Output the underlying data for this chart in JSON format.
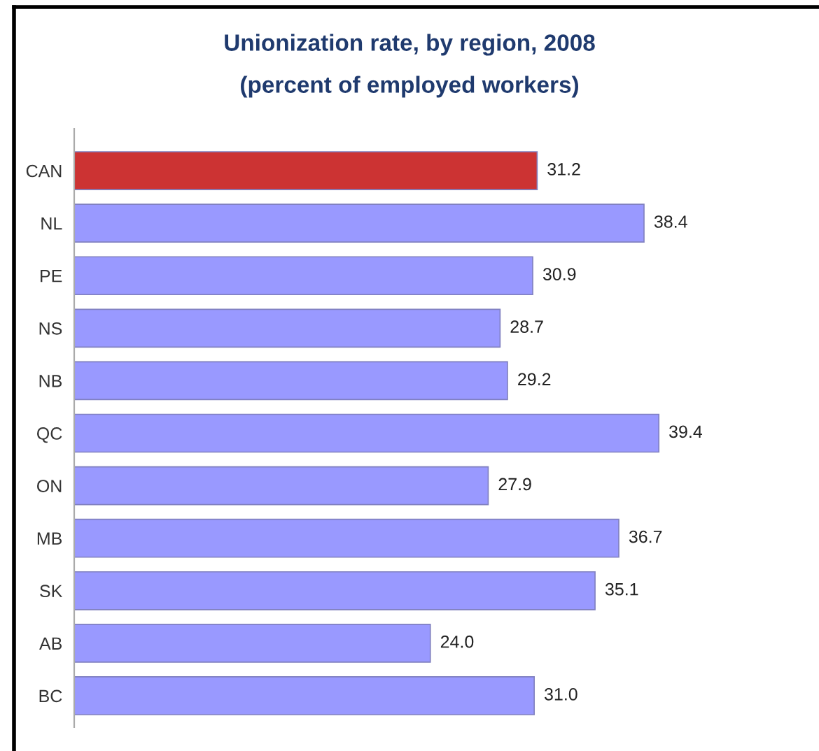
{
  "chart_data": {
    "type": "bar",
    "orientation": "horizontal",
    "title": "Unionization rate, by region, 2008",
    "subtitle": "(percent of employed workers)",
    "categories": [
      "CAN",
      "NL",
      "PE",
      "NS",
      "NB",
      "QC",
      "ON",
      "MB",
      "SK",
      "AB",
      "BC"
    ],
    "values": [
      31.2,
      38.4,
      30.9,
      28.7,
      29.2,
      39.4,
      27.9,
      36.7,
      35.1,
      24.0,
      31.0
    ],
    "value_labels": [
      "31.2",
      "38.4",
      "30.9",
      "28.7",
      "29.2",
      "39.4",
      "27.9",
      "36.7",
      "35.1",
      "24.0",
      "31.0"
    ],
    "colors": [
      "#cc3333",
      "#9999ff",
      "#9999ff",
      "#9999ff",
      "#9999ff",
      "#9999ff",
      "#9999ff",
      "#9999ff",
      "#9999ff",
      "#9999ff",
      "#9999ff"
    ],
    "tick_labels": "y",
    "grid": false,
    "legend": false
  }
}
